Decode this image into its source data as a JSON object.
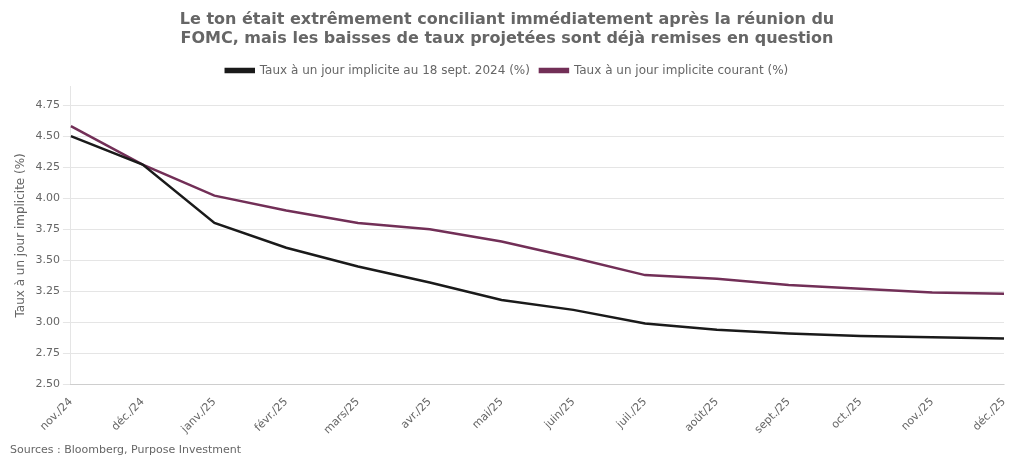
{
  "chart_data": {
    "type": "line",
    "title": [
      "Le ton était extrêmement conciliant immédiatement après la réunion du",
      "FOMC, mais les baisses de taux projetées sont déjà remises en question"
    ],
    "y_label": "Taux à un jour implicite (%)",
    "source": "Sources : Bloomberg, Purpose Investment",
    "categories": [
      "nov./24",
      "déc./24",
      "janv./25",
      "févr./25",
      "mars/25",
      "avr./25",
      "mai/25",
      "juin/25",
      "juil./25",
      "août/25",
      "sept./25",
      "oct./25",
      "nov./25",
      "déc./25"
    ],
    "series": [
      {
        "name": "Taux à un jour implicite au 18 sept. 2024 (%)",
        "color": "#1a1a1a",
        "values": [
          4.5,
          4.27,
          3.8,
          3.6,
          3.45,
          3.32,
          3.18,
          3.1,
          2.99,
          2.94,
          2.91,
          2.89,
          2.88,
          2.87
        ]
      },
      {
        "name": "Taux à un jour implicite courant (%)",
        "color": "#722F57",
        "values": [
          4.58,
          4.27,
          4.02,
          3.9,
          3.8,
          3.75,
          3.65,
          3.52,
          3.38,
          3.35,
          3.3,
          3.27,
          3.24,
          3.23
        ]
      }
    ],
    "ylim": [
      2.5,
      4.9
    ],
    "yticks": [
      {
        "value": 2.5,
        "label": "2.50"
      },
      2.75,
      {
        "value": 3.0,
        "label": "3.00"
      },
      3.25,
      {
        "value": 3.5,
        "label": "3.50"
      },
      3.75,
      {
        "value": 4.0,
        "label": "4.00"
      },
      4.25,
      {
        "value": 4.5,
        "label": "4.50"
      },
      4.75
    ],
    "grid": "y",
    "legend": "top"
  }
}
